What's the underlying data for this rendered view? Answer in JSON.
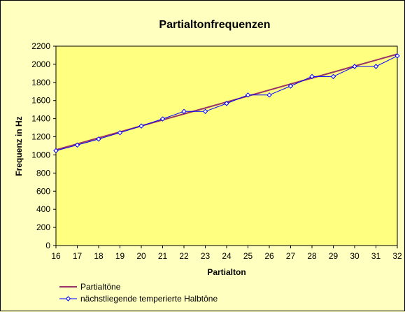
{
  "chart_data": {
    "type": "line",
    "title": "Partialtonfrequenzen",
    "xlabel": "Partialton",
    "ylabel": "Frequenz in Hz",
    "x": [
      16,
      17,
      18,
      19,
      20,
      21,
      22,
      23,
      24,
      25,
      26,
      27,
      28,
      29,
      30,
      31,
      32
    ],
    "ylim": [
      0,
      2200
    ],
    "yticks": [
      0,
      200,
      400,
      600,
      800,
      1000,
      1200,
      1400,
      1600,
      1800,
      2000,
      2200
    ],
    "grid": false,
    "legend_position": "bottom-left",
    "series": [
      {
        "name": "Partialtöne",
        "color": "#993366",
        "marker": "none",
        "values": [
          1056,
          1122,
          1188,
          1254,
          1320,
          1386,
          1452,
          1518,
          1584,
          1650,
          1716,
          1782,
          1848,
          1914,
          1980,
          2046,
          2112
        ]
      },
      {
        "name": "nächstliegende temperierte Halbtöne",
        "color": "#0000FF",
        "marker": "diamond",
        "values": [
          1047,
          1109,
          1175,
          1245,
          1319,
          1397,
          1480,
          1480,
          1568,
          1661,
          1661,
          1760,
          1865,
          1865,
          1976,
          1976,
          2093
        ]
      }
    ]
  },
  "colors": {
    "plot_area": "#FFFF80",
    "background": "#FFFFC0",
    "axis": "#000000"
  }
}
